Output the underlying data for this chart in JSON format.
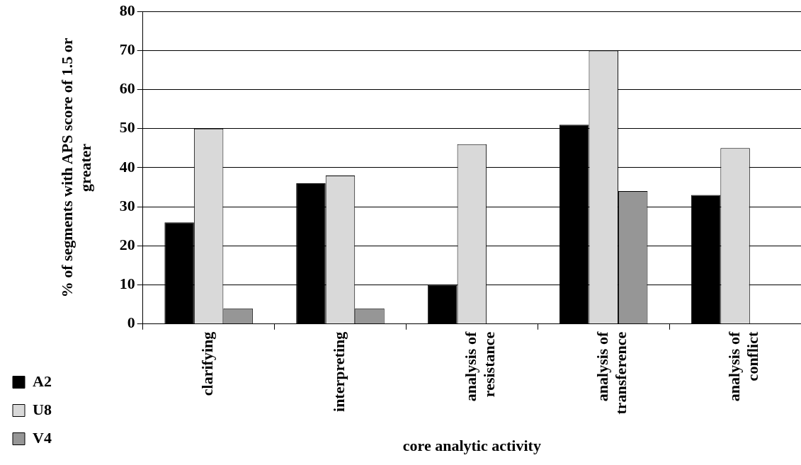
{
  "chart_data": {
    "type": "bar",
    "xlabel": "core analytic activity",
    "ylabel": "% of segments with APS score of 1.5 or greater",
    "categories": [
      "clarifying",
      "interpreting",
      "analysis of resistance",
      "analysis of transference",
      "analysis of conflict"
    ],
    "series": [
      {
        "name": "A2",
        "color": "#000000",
        "values": [
          26,
          36,
          10,
          51,
          33
        ]
      },
      {
        "name": "U8",
        "color": "#d9d9d9",
        "values": [
          50,
          38,
          46,
          70,
          45
        ]
      },
      {
        "name": "V4",
        "color": "#969696",
        "values": [
          4,
          4,
          null,
          34,
          null
        ]
      }
    ],
    "ylim": [
      0,
      80
    ],
    "yticks": [
      0,
      10,
      20,
      30,
      40,
      50,
      60,
      70,
      80
    ],
    "grid": "y",
    "legend": "bottom left"
  }
}
